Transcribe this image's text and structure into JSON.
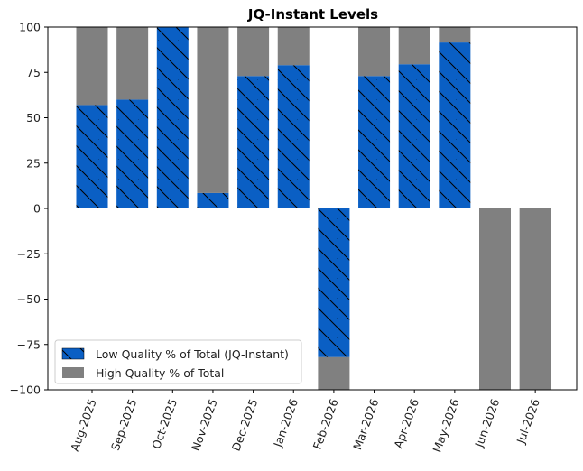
{
  "chart_data": {
    "type": "bar",
    "title": "JQ-Instant Levels",
    "xlabel": "",
    "ylabel": "",
    "ylim": [
      -100,
      100
    ],
    "yticks": [
      100,
      75,
      50,
      25,
      0,
      -25,
      -50,
      -75,
      -100
    ],
    "categories": [
      "Aug-2025",
      "Sep-2025",
      "Oct-2025",
      "Nov-2025",
      "Dec-2025",
      "Jan-2026",
      "Feb-2026",
      "Mar-2026",
      "Apr-2026",
      "May-2026",
      "Jun-2026",
      "Jul-2026"
    ],
    "stacked": true,
    "series": [
      {
        "name": "Low Quality % of Total (JQ-Instant)",
        "color": "#0a5fc4",
        "hatch": "diagonal",
        "values": [
          57,
          60,
          100,
          8.5,
          73,
          79,
          -82,
          73,
          79.5,
          91.5,
          0,
          0
        ]
      },
      {
        "name": "High Quality % of Total",
        "color": "#808080",
        "values": [
          43,
          40,
          0,
          91.5,
          27,
          21,
          -18,
          27,
          20.5,
          8.5,
          -100,
          -100
        ]
      }
    ],
    "grid": false,
    "legend_position": "bottom-left"
  }
}
